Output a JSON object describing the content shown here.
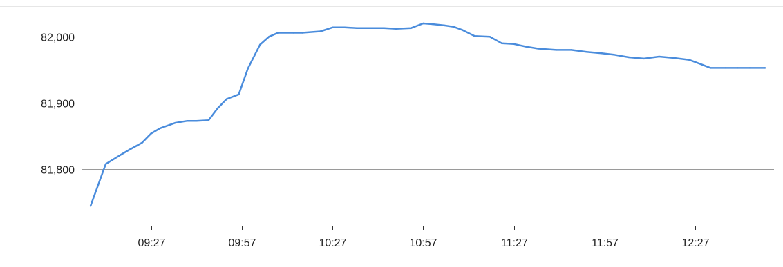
{
  "chart_data": {
    "type": "line",
    "title": "",
    "xlabel": "",
    "ylabel": "",
    "x_ticks": [
      "09:27",
      "09:57",
      "10:27",
      "10:57",
      "11:27",
      "11:57",
      "12:27"
    ],
    "x_tick_minutes": [
      567,
      597,
      627,
      657,
      687,
      717,
      747
    ],
    "y_ticks": [
      81800,
      81900,
      82000
    ],
    "y_tick_labels": [
      "81,800",
      "81,900",
      "82,000"
    ],
    "xlim_minutes": [
      544,
      773
    ],
    "ylim": [
      81715,
      82045
    ],
    "grid": "horizontal",
    "legend": "none",
    "color": "#4a8cdc",
    "series": [
      {
        "x_minutes": [
          547,
          552,
          557,
          560,
          564,
          567,
          570,
          575,
          579,
          582,
          586,
          589,
          592,
          596,
          599,
          603,
          606,
          609,
          614,
          617,
          623,
          627,
          631,
          635,
          640,
          644,
          648,
          653,
          657,
          660,
          664,
          667,
          670,
          674,
          679,
          683,
          687,
          691,
          695,
          701,
          706,
          711,
          716,
          720,
          725,
          730,
          735,
          740,
          745,
          748,
          752,
          757,
          761,
          765,
          770
        ],
        "values": [
          81745,
          81808,
          81822,
          81830,
          81840,
          81854,
          81862,
          81870,
          81873,
          81873,
          81874,
          81892,
          81906,
          81913,
          81952,
          81988,
          82000,
          82006,
          82006,
          82006,
          82008,
          82014,
          82014,
          82013,
          82013,
          82013,
          82012,
          82013,
          82020,
          82019,
          82017,
          82015,
          82010,
          82001,
          82000,
          81990,
          81989,
          81985,
          81982,
          81980,
          81980,
          81977,
          81975,
          81973,
          81969,
          81967,
          81970,
          81968,
          81965,
          81960,
          81953,
          81953,
          81953,
          81953,
          81953
        ]
      }
    ]
  }
}
